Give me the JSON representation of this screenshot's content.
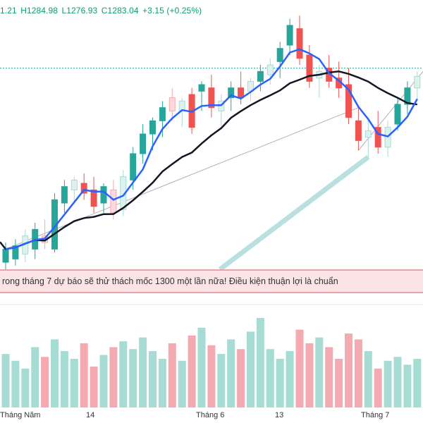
{
  "ohlc": {
    "open_partial": "1.21",
    "high": "H1284.98",
    "low": "L1276.93",
    "close": "C1283.04",
    "change": "+3.15 (+0.25%)"
  },
  "banner": {
    "text": "rong tháng 7 dự báo sẽ thử thách mốc 1300 một lần nữa!  Điều kiện thuận lợi là chuẩn"
  },
  "x_axis": {
    "labels": [
      "Tháng Năm",
      "14",
      "Tháng 6",
      "13",
      "Tháng 7"
    ]
  },
  "colors": {
    "up": "#26a69a",
    "down": "#ef5350",
    "ma_fast": "#2962ff",
    "ma_slow": "#131722",
    "volume_up": "#a6dcd3",
    "volume_down": "#f4aab0"
  },
  "chart_data": {
    "type": "candlestick",
    "price_range_visible": [
      1170,
      1320
    ],
    "current_price_line": 1288,
    "candles": [
      {
        "o": 1170,
        "h": 1182,
        "l": 1165,
        "c": 1178,
        "up": true
      },
      {
        "o": 1172,
        "h": 1184,
        "l": 1168,
        "c": 1180,
        "up": true
      },
      {
        "o": 1175,
        "h": 1190,
        "l": 1170,
        "c": 1186,
        "up": true
      },
      {
        "o": 1178,
        "h": 1194,
        "l": 1172,
        "c": 1190,
        "up": true
      },
      {
        "o": 1186,
        "h": 1196,
        "l": 1178,
        "c": 1182,
        "up": false
      },
      {
        "o": 1178,
        "h": 1212,
        "l": 1176,
        "c": 1208,
        "up": true
      },
      {
        "o": 1206,
        "h": 1220,
        "l": 1200,
        "c": 1216,
        "up": true
      },
      {
        "o": 1214,
        "h": 1222,
        "l": 1206,
        "c": 1220,
        "up": true
      },
      {
        "o": 1218,
        "h": 1224,
        "l": 1208,
        "c": 1212,
        "up": false
      },
      {
        "o": 1214,
        "h": 1222,
        "l": 1200,
        "c": 1204,
        "up": false
      },
      {
        "o": 1206,
        "h": 1218,
        "l": 1200,
        "c": 1216,
        "up": true
      },
      {
        "o": 1214,
        "h": 1220,
        "l": 1196,
        "c": 1200,
        "up": false
      },
      {
        "o": 1202,
        "h": 1226,
        "l": 1198,
        "c": 1222,
        "up": true
      },
      {
        "o": 1220,
        "h": 1240,
        "l": 1214,
        "c": 1236,
        "up": true
      },
      {
        "o": 1236,
        "h": 1254,
        "l": 1230,
        "c": 1248,
        "up": true
      },
      {
        "o": 1248,
        "h": 1258,
        "l": 1238,
        "c": 1256,
        "up": true
      },
      {
        "o": 1256,
        "h": 1268,
        "l": 1246,
        "c": 1264,
        "up": true
      },
      {
        "o": 1270,
        "h": 1276,
        "l": 1256,
        "c": 1262,
        "up": false
      },
      {
        "o": 1262,
        "h": 1270,
        "l": 1252,
        "c": 1268,
        "up": true
      },
      {
        "o": 1272,
        "h": 1276,
        "l": 1248,
        "c": 1252,
        "up": false
      },
      {
        "o": 1274,
        "h": 1280,
        "l": 1262,
        "c": 1278,
        "up": true
      },
      {
        "o": 1276,
        "h": 1284,
        "l": 1258,
        "c": 1264,
        "up": false
      },
      {
        "o": 1262,
        "h": 1272,
        "l": 1252,
        "c": 1268,
        "up": true
      },
      {
        "o": 1270,
        "h": 1280,
        "l": 1262,
        "c": 1276,
        "up": true
      },
      {
        "o": 1276,
        "h": 1286,
        "l": 1266,
        "c": 1270,
        "up": false
      },
      {
        "o": 1274,
        "h": 1282,
        "l": 1268,
        "c": 1280,
        "up": true
      },
      {
        "o": 1280,
        "h": 1290,
        "l": 1274,
        "c": 1286,
        "up": true
      },
      {
        "o": 1284,
        "h": 1294,
        "l": 1278,
        "c": 1290,
        "up": true
      },
      {
        "o": 1292,
        "h": 1304,
        "l": 1282,
        "c": 1300,
        "up": true
      },
      {
        "o": 1302,
        "h": 1318,
        "l": 1296,
        "c": 1314,
        "up": true
      },
      {
        "o": 1312,
        "h": 1320,
        "l": 1290,
        "c": 1294,
        "up": false
      },
      {
        "o": 1296,
        "h": 1302,
        "l": 1276,
        "c": 1280,
        "up": false
      },
      {
        "o": 1282,
        "h": 1290,
        "l": 1270,
        "c": 1286,
        "up": true
      },
      {
        "o": 1288,
        "h": 1296,
        "l": 1276,
        "c": 1280,
        "up": false
      },
      {
        "o": 1282,
        "h": 1292,
        "l": 1270,
        "c": 1276,
        "up": false
      },
      {
        "o": 1278,
        "h": 1288,
        "l": 1254,
        "c": 1258,
        "up": false
      },
      {
        "o": 1256,
        "h": 1264,
        "l": 1238,
        "c": 1244,
        "up": false
      },
      {
        "o": 1246,
        "h": 1258,
        "l": 1234,
        "c": 1250,
        "up": true
      },
      {
        "o": 1252,
        "h": 1262,
        "l": 1236,
        "c": 1240,
        "up": false
      },
      {
        "o": 1240,
        "h": 1256,
        "l": 1234,
        "c": 1252,
        "up": true
      },
      {
        "o": 1254,
        "h": 1270,
        "l": 1250,
        "c": 1266,
        "up": true
      },
      {
        "o": 1266,
        "h": 1280,
        "l": 1260,
        "c": 1276,
        "up": true
      },
      {
        "o": 1276,
        "h": 1286,
        "l": 1268,
        "c": 1283,
        "up": true
      }
    ],
    "volume": [
      0.55,
      0.48,
      0.4,
      0.62,
      0.52,
      0.7,
      0.58,
      0.5,
      0.66,
      0.42,
      0.54,
      0.62,
      0.68,
      0.6,
      0.72,
      0.58,
      0.5,
      0.66,
      0.48,
      0.74,
      0.82,
      0.64,
      0.55,
      0.7,
      0.6,
      0.78,
      0.92,
      0.6,
      0.5,
      0.58,
      0.8,
      0.66,
      0.72,
      0.62,
      0.5,
      0.76,
      0.7,
      0.58,
      0.4,
      0.48,
      0.52,
      0.44,
      0.5
    ]
  }
}
